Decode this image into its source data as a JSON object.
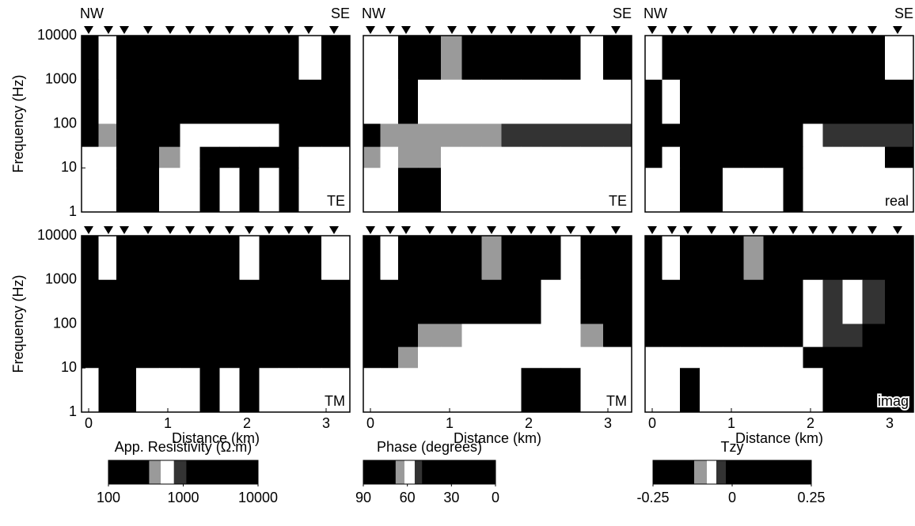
{
  "chart_data": [
    {
      "type": "heatmap",
      "label": "TE",
      "left_label": "NW",
      "right_label": "SE",
      "ylabel": "Frequency (Hz)",
      "log_y": true,
      "xlim": [
        -0.09,
        3.3
      ],
      "ylim": [
        1,
        10000
      ],
      "yticks": [
        1,
        10,
        100,
        1000,
        10000
      ],
      "stations": [
        0,
        0.25,
        0.45,
        0.75,
        1.03,
        1.28,
        1.53,
        1.78,
        2.03,
        2.28,
        2.53,
        2.78,
        3.1
      ],
      "frequency_edges": [
        10000,
        1000,
        100,
        30,
        10,
        1
      ],
      "colormap": [
        {
          "from": 100,
          "to": 350,
          "color": "#000000"
        },
        {
          "from": 350,
          "to": 500,
          "color": "#9a9a9a"
        },
        {
          "from": 500,
          "to": 750,
          "color": "#ffffff"
        },
        {
          "from": 750,
          "to": 1100,
          "color": "#333333"
        },
        {
          "from": 1100,
          "to": 10000,
          "color": "#000000"
        }
      ],
      "z": [
        [
          3000,
          600,
          3000,
          3000,
          3000,
          3000,
          3000,
          3000,
          3000,
          3000,
          3000,
          600,
          3000
        ],
        [
          3000,
          600,
          3000,
          3000,
          3000,
          3000,
          3000,
          3000,
          3000,
          3000,
          3000,
          3000,
          3000
        ],
        [
          3000,
          400,
          3000,
          3000,
          3000,
          600,
          600,
          600,
          600,
          600,
          3000,
          3000,
          3000
        ],
        [
          600,
          600,
          3000,
          3000,
          400,
          600,
          3000,
          3000,
          3000,
          3000,
          3000,
          600,
          600
        ],
        [
          600,
          600,
          3000,
          3000,
          600,
          600,
          3000,
          600,
          3000,
          600,
          3000,
          600,
          600
        ]
      ]
    },
    {
      "type": "heatmap",
      "label": "TE",
      "left_label": "NW",
      "right_label": "SE",
      "log_y": true,
      "xlim": [
        -0.09,
        3.3
      ],
      "ylim": [
        1,
        10000
      ],
      "stations": [
        0,
        0.25,
        0.45,
        0.75,
        1.03,
        1.28,
        1.53,
        1.78,
        2.03,
        2.28,
        2.53,
        2.78,
        3.1
      ],
      "frequency_edges": [
        10000,
        1000,
        100,
        30,
        10,
        1
      ],
      "colormap": [
        {
          "from": 68,
          "to": 90,
          "color": "#000000"
        },
        {
          "from": 62,
          "to": 68,
          "color": "#9a9a9a"
        },
        {
          "from": 55,
          "to": 62,
          "color": "#ffffff"
        },
        {
          "from": 50,
          "to": 55,
          "color": "#333333"
        },
        {
          "from": 0,
          "to": 50,
          "color": "#000000"
        }
      ],
      "z": [
        [
          58,
          58,
          80,
          80,
          65,
          80,
          80,
          80,
          80,
          80,
          80,
          58,
          80
        ],
        [
          58,
          58,
          80,
          58,
          58,
          58,
          58,
          58,
          58,
          58,
          58,
          58,
          58
        ],
        [
          80,
          65,
          65,
          65,
          65,
          65,
          65,
          52,
          52,
          52,
          52,
          52,
          52
        ],
        [
          65,
          58,
          65,
          65,
          58,
          58,
          58,
          58,
          58,
          58,
          58,
          58,
          58
        ],
        [
          58,
          58,
          80,
          80,
          58,
          58,
          58,
          58,
          58,
          58,
          58,
          58,
          58
        ]
      ]
    },
    {
      "type": "heatmap",
      "label": "real",
      "left_label": "NW",
      "right_label": "SE",
      "log_y": true,
      "xlim": [
        -0.09,
        3.3
      ],
      "ylim": [
        1,
        10000
      ],
      "stations": [
        0,
        0.25,
        0.45,
        0.75,
        1.03,
        1.28,
        1.53,
        1.78,
        2.03,
        2.28,
        2.53,
        2.78,
        3.1
      ],
      "frequency_edges": [
        10000,
        1000,
        100,
        30,
        10,
        1
      ],
      "colormap": [
        {
          "from": -0.25,
          "to": -0.12,
          "color": "#000000"
        },
        {
          "from": -0.12,
          "to": -0.08,
          "color": "#9a9a9a"
        },
        {
          "from": -0.08,
          "to": -0.05,
          "color": "#ffffff"
        },
        {
          "from": -0.05,
          "to": -0.02,
          "color": "#333333"
        },
        {
          "from": -0.02,
          "to": 0.25,
          "color": "#000000"
        }
      ],
      "z": [
        [
          -0.06,
          0.1,
          0.1,
          0.1,
          0.1,
          0.1,
          0.1,
          0.1,
          0.1,
          0.1,
          0.1,
          0.1,
          -0.06
        ],
        [
          0.1,
          -0.06,
          0.1,
          0.1,
          0.1,
          0.1,
          0.1,
          0.1,
          0.1,
          0.1,
          0.1,
          0.1,
          0.1
        ],
        [
          0.1,
          0.1,
          0.1,
          0.1,
          0.1,
          0.1,
          0.1,
          0.1,
          -0.06,
          -0.03,
          -0.03,
          -0.03,
          -0.03
        ],
        [
          0.1,
          -0.06,
          0.1,
          0.1,
          0.1,
          0.1,
          0.1,
          0.1,
          -0.06,
          -0.06,
          -0.06,
          -0.06,
          0.1
        ],
        [
          -0.06,
          -0.06,
          0.1,
          0.1,
          -0.06,
          -0.06,
          -0.06,
          0.1,
          -0.06,
          -0.06,
          -0.06,
          -0.06,
          -0.06
        ]
      ]
    },
    {
      "type": "heatmap",
      "label": "TM",
      "ylabel": "Frequency (Hz)",
      "xlabel": "Distance (km)",
      "log_y": true,
      "xlim": [
        -0.09,
        3.3
      ],
      "ylim": [
        1,
        10000
      ],
      "yticks": [
        1,
        10,
        100,
        1000,
        10000
      ],
      "xticks": [
        0,
        1,
        2,
        3
      ],
      "stations": [
        0,
        0.25,
        0.45,
        0.75,
        1.03,
        1.28,
        1.53,
        1.78,
        2.03,
        2.28,
        2.53,
        2.78,
        3.1
      ],
      "frequency_edges": [
        10000,
        1000,
        100,
        30,
        10,
        1
      ],
      "colormap": [
        {
          "from": 100,
          "to": 350,
          "color": "#000000"
        },
        {
          "from": 350,
          "to": 500,
          "color": "#9a9a9a"
        },
        {
          "from": 500,
          "to": 750,
          "color": "#ffffff"
        },
        {
          "from": 750,
          "to": 1100,
          "color": "#333333"
        },
        {
          "from": 1100,
          "to": 10000,
          "color": "#000000"
        }
      ],
      "z": [
        [
          3000,
          600,
          3000,
          3000,
          3000,
          3000,
          3000,
          3000,
          600,
          3000,
          3000,
          3000,
          600
        ],
        [
          3000,
          3000,
          3000,
          3000,
          3000,
          3000,
          3000,
          3000,
          3000,
          3000,
          3000,
          3000,
          3000
        ],
        [
          3000,
          3000,
          3000,
          3000,
          3000,
          3000,
          3000,
          3000,
          3000,
          3000,
          3000,
          3000,
          3000
        ],
        [
          3000,
          3000,
          3000,
          3000,
          3000,
          3000,
          3000,
          3000,
          3000,
          3000,
          3000,
          3000,
          3000
        ],
        [
          600,
          3000,
          3000,
          600,
          600,
          600,
          3000,
          600,
          3000,
          600,
          600,
          600,
          600
        ]
      ]
    },
    {
      "type": "heatmap",
      "label": "TM",
      "xlabel": "Distance (km)",
      "log_y": true,
      "xlim": [
        -0.09,
        3.3
      ],
      "ylim": [
        1,
        10000
      ],
      "xticks": [
        0,
        1,
        2,
        3
      ],
      "stations": [
        0,
        0.25,
        0.45,
        0.75,
        1.03,
        1.28,
        1.53,
        1.78,
        2.03,
        2.28,
        2.53,
        2.78,
        3.1
      ],
      "frequency_edges": [
        10000,
        1000,
        100,
        30,
        10,
        1
      ],
      "colormap": [
        {
          "from": 68,
          "to": 90,
          "color": "#000000"
        },
        {
          "from": 62,
          "to": 68,
          "color": "#9a9a9a"
        },
        {
          "from": 55,
          "to": 62,
          "color": "#ffffff"
        },
        {
          "from": 50,
          "to": 55,
          "color": "#333333"
        },
        {
          "from": 0,
          "to": 50,
          "color": "#000000"
        }
      ],
      "z": [
        [
          80,
          58,
          80,
          80,
          80,
          80,
          65,
          80,
          80,
          80,
          58,
          80,
          80
        ],
        [
          80,
          80,
          80,
          80,
          80,
          80,
          80,
          80,
          80,
          58,
          58,
          80,
          80
        ],
        [
          80,
          80,
          80,
          65,
          65,
          58,
          58,
          58,
          58,
          58,
          58,
          65,
          80
        ],
        [
          80,
          80,
          65,
          58,
          58,
          58,
          58,
          58,
          58,
          58,
          58,
          58,
          58
        ],
        [
          58,
          58,
          58,
          58,
          58,
          58,
          58,
          58,
          80,
          80,
          80,
          58,
          58
        ]
      ]
    },
    {
      "type": "heatmap",
      "label": "imag",
      "xlabel": "Distance (km)",
      "log_y": true,
      "xlim": [
        -0.09,
        3.3
      ],
      "ylim": [
        1,
        10000
      ],
      "xticks": [
        0,
        1,
        2,
        3
      ],
      "stations": [
        0,
        0.25,
        0.45,
        0.75,
        1.03,
        1.28,
        1.53,
        1.78,
        2.03,
        2.28,
        2.53,
        2.78,
        3.1
      ],
      "frequency_edges": [
        10000,
        1000,
        100,
        30,
        10,
        1
      ],
      "colormap": [
        {
          "from": -0.25,
          "to": -0.12,
          "color": "#000000"
        },
        {
          "from": -0.12,
          "to": -0.08,
          "color": "#9a9a9a"
        },
        {
          "from": -0.08,
          "to": -0.05,
          "color": "#ffffff"
        },
        {
          "from": -0.05,
          "to": -0.02,
          "color": "#333333"
        },
        {
          "from": -0.02,
          "to": 0.25,
          "color": "#000000"
        }
      ],
      "z": [
        [
          0.1,
          -0.06,
          0.1,
          0.1,
          0.1,
          -0.1,
          0.1,
          0.1,
          0.1,
          0.1,
          0.1,
          0.1,
          0.1
        ],
        [
          0.1,
          0.1,
          0.1,
          0.1,
          0.1,
          0.1,
          0.1,
          0.1,
          -0.06,
          -0.03,
          -0.06,
          -0.03,
          0.1
        ],
        [
          0.1,
          0.1,
          0.1,
          0.1,
          0.1,
          0.1,
          0.1,
          0.1,
          -0.06,
          -0.03,
          -0.03,
          0.1,
          0.1
        ],
        [
          -0.06,
          -0.06,
          -0.06,
          -0.06,
          -0.06,
          -0.06,
          -0.06,
          -0.06,
          0.1,
          0.1,
          0.1,
          0.1,
          0.1
        ],
        [
          -0.06,
          -0.06,
          0.1,
          -0.06,
          -0.06,
          -0.06,
          -0.06,
          -0.06,
          -0.06,
          0.1,
          0.1,
          0.1,
          0.1
        ]
      ]
    },
    {
      "type": "colorbar",
      "title": "App. Resistivity (Ω.m)",
      "log_x": true,
      "xlim": [
        100,
        10000
      ],
      "xticks": [
        100,
        1000,
        10000
      ],
      "colormap": [
        {
          "from": 100,
          "to": 350,
          "color": "#000000"
        },
        {
          "from": 350,
          "to": 500,
          "color": "#9a9a9a"
        },
        {
          "from": 500,
          "to": 750,
          "color": "#ffffff"
        },
        {
          "from": 750,
          "to": 1100,
          "color": "#333333"
        },
        {
          "from": 1100,
          "to": 10000,
          "color": "#000000"
        }
      ]
    },
    {
      "type": "colorbar",
      "title": "Phase (degrees)",
      "xlim": [
        90,
        0
      ],
      "xticks": [
        90,
        60,
        30,
        0
      ],
      "colormap": [
        {
          "from": 68,
          "to": 90,
          "color": "#000000"
        },
        {
          "from": 62,
          "to": 68,
          "color": "#9a9a9a"
        },
        {
          "from": 55,
          "to": 62,
          "color": "#ffffff"
        },
        {
          "from": 50,
          "to": 55,
          "color": "#333333"
        },
        {
          "from": 0,
          "to": 50,
          "color": "#000000"
        }
      ]
    },
    {
      "type": "colorbar",
      "title": "Tzy",
      "xlim": [
        -0.25,
        0.25
      ],
      "xticks": [
        -0.25,
        0,
        0.25
      ],
      "colormap": [
        {
          "from": -0.25,
          "to": -0.12,
          "color": "#000000"
        },
        {
          "from": -0.12,
          "to": -0.08,
          "color": "#9a9a9a"
        },
        {
          "from": -0.08,
          "to": -0.05,
          "color": "#ffffff"
        },
        {
          "from": -0.05,
          "to": -0.02,
          "color": "#333333"
        },
        {
          "from": -0.02,
          "to": 0.25,
          "color": "#000000"
        }
      ]
    }
  ]
}
